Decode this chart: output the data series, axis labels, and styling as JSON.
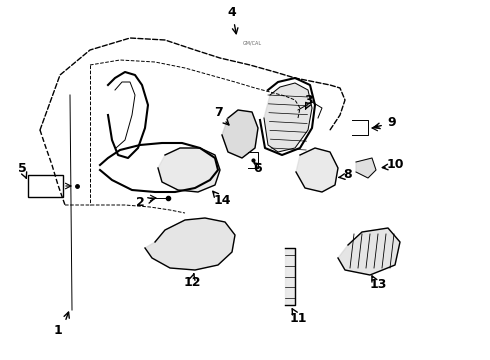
{
  "background_color": "#ffffff",
  "line_color": "#000000",
  "text_color": "#000000",
  "label_fontsize": 9,
  "fig_width": 4.9,
  "fig_height": 3.6,
  "dpi": 100
}
